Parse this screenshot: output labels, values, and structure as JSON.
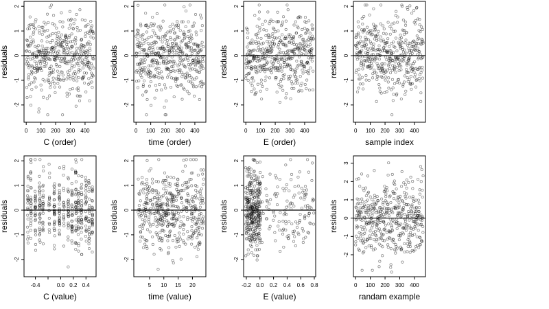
{
  "figure": {
    "background": "#ffffff",
    "point_color": "#000000",
    "point_opacity": 0.5,
    "zero_line_color": "#000000"
  },
  "chart_data": [
    {
      "type": "scatter",
      "xlabel": "C (order)",
      "ylabel": "residuals",
      "xlim": [
        -15,
        475
      ],
      "ylim": [
        -2.7,
        2.2
      ],
      "xticks": [
        "0",
        "100",
        "200",
        "300",
        "400"
      ],
      "xtick_values": [
        0,
        100,
        200,
        300,
        400
      ],
      "yticks": [
        "-2",
        "-1",
        "0",
        "1",
        "2"
      ],
      "ytick_values": [
        -2,
        -1,
        0,
        1,
        2
      ],
      "reference_line": 0,
      "n_points": 460,
      "x_pattern": "index",
      "x": [],
      "y": []
    },
    {
      "type": "scatter",
      "xlabel": "time (order)",
      "ylabel": "residuals",
      "xlim": [
        -15,
        475
      ],
      "ylim": [
        -2.7,
        2.2
      ],
      "xticks": [
        "0",
        "100",
        "200",
        "300",
        "400"
      ],
      "xtick_values": [
        0,
        100,
        200,
        300,
        400
      ],
      "yticks": [
        "-2",
        "-1",
        "0",
        "1",
        "2"
      ],
      "ytick_values": [
        -2,
        -1,
        0,
        1,
        2
      ],
      "reference_line": 0,
      "n_points": 460,
      "x_pattern": "index",
      "x": [],
      "y": []
    },
    {
      "type": "scatter",
      "xlabel": "E (order)",
      "ylabel": "residuals",
      "xlim": [
        -15,
        475
      ],
      "ylim": [
        -2.7,
        2.2
      ],
      "xticks": [
        "0",
        "100",
        "200",
        "300",
        "400"
      ],
      "xtick_values": [
        0,
        100,
        200,
        300,
        400
      ],
      "yticks": [
        "-2",
        "-1",
        "0",
        "1",
        "2"
      ],
      "ytick_values": [
        -2,
        -1,
        0,
        1,
        2
      ],
      "reference_line": 0,
      "n_points": 460,
      "x_pattern": "index",
      "x": [],
      "y": []
    },
    {
      "type": "scatter",
      "xlabel": "sample index",
      "ylabel": "residuals",
      "xlim": [
        -15,
        475
      ],
      "ylim": [
        -2.7,
        2.2
      ],
      "xticks": [
        "0",
        "100",
        "200",
        "300",
        "400"
      ],
      "xtick_values": [
        0,
        100,
        200,
        300,
        400
      ],
      "yticks": [
        "-2",
        "-1",
        "0",
        "1",
        "2"
      ],
      "ytick_values": [
        -2,
        -1,
        0,
        1,
        2
      ],
      "reference_line": 0,
      "n_points": 460,
      "x_pattern": "index",
      "x": [],
      "y": []
    },
    {
      "type": "scatter",
      "xlabel": "C (value)",
      "ylabel": "residuals",
      "xlim": [
        -0.58,
        0.56
      ],
      "ylim": [
        -2.7,
        2.2
      ],
      "xticks": [
        "-0.4",
        "0.0",
        "0.2",
        "0.4"
      ],
      "xtick_values": [
        -0.4,
        0.0,
        0.2,
        0.4
      ],
      "minor_xtick_values": [
        -0.2
      ],
      "yticks": [
        "-2",
        "-1",
        "0",
        "1",
        "2"
      ],
      "ytick_values": [
        -2,
        -1,
        0,
        1,
        2
      ],
      "reference_line": 0,
      "n_points": 460,
      "x_pattern": "discrete",
      "x_levels": [
        -0.52,
        -0.47,
        -0.4,
        -0.33,
        -0.28,
        -0.18,
        -0.1,
        -0.02,
        0.05,
        0.12,
        0.18,
        0.24,
        0.28,
        0.33,
        0.4,
        0.45,
        0.5
      ],
      "x": [],
      "y": []
    },
    {
      "type": "scatter",
      "xlabel": "time (value)",
      "ylabel": "residuals",
      "xlim": [
        -0.5,
        24.7
      ],
      "ylim": [
        -2.7,
        2.2
      ],
      "xticks": [
        "5",
        "10",
        "15",
        "20"
      ],
      "xtick_values": [
        5,
        10,
        15,
        20
      ],
      "yticks": [
        "-2",
        "-1",
        "0",
        "1",
        "2"
      ],
      "ytick_values": [
        -2,
        -1,
        0,
        1,
        2
      ],
      "reference_line": 0,
      "n_points": 460,
      "x_pattern": "uniform",
      "x": [],
      "y": []
    },
    {
      "type": "scatter",
      "xlabel": "E (value)",
      "ylabel": "residuals",
      "xlim": [
        -0.24,
        0.82
      ],
      "ylim": [
        -2.7,
        2.2
      ],
      "xticks": [
        "-0.2",
        "0.0",
        "0.2",
        "0.4",
        "0.6",
        "0.8"
      ],
      "xtick_values": [
        -0.2,
        0.0,
        0.2,
        0.4,
        0.6,
        0.8
      ],
      "yticks": [
        "-2",
        "-1",
        "0",
        "1",
        "2"
      ],
      "ytick_values": [
        -2,
        -1,
        0,
        1,
        2
      ],
      "reference_line": 0,
      "n_points": 460,
      "x_pattern": "skewed",
      "x": [],
      "y": []
    },
    {
      "type": "scatter",
      "xlabel": "randam example",
      "ylabel": "residuals",
      "xlim": [
        -15,
        475
      ],
      "ylim": [
        -3.2,
        3.4
      ],
      "xticks": [
        "0",
        "100",
        "200",
        "300",
        "400"
      ],
      "xtick_values": [
        0,
        100,
        200,
        300,
        400
      ],
      "yticks": [
        "-2",
        "-1",
        "0",
        "1",
        "2",
        "3"
      ],
      "ytick_values": [
        -2,
        -1,
        0,
        1,
        2,
        3
      ],
      "reference_line": 0,
      "n_points": 460,
      "x_pattern": "index",
      "x": [],
      "y": []
    }
  ]
}
